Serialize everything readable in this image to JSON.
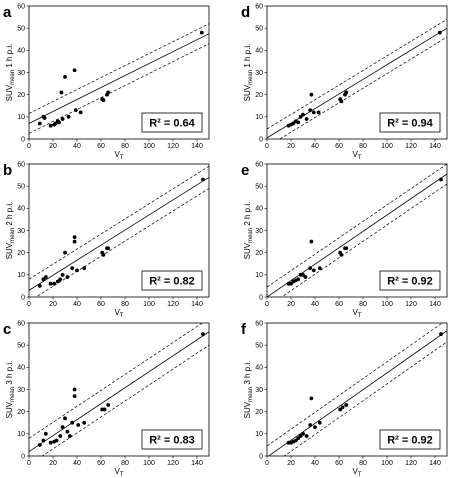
{
  "chart_data": [
    {
      "panel": "a",
      "type": "scatter",
      "r2": "R² = 0.64",
      "xlabel": "V",
      "xlabel_sub": "T",
      "ylabel_pre": "SUV",
      "ylabel_sub": "mean",
      "ylabel_post": " 1 h p.i.",
      "xlim": [
        0,
        150
      ],
      "ylim": [
        0,
        60
      ],
      "xticks": [
        0,
        20,
        40,
        60,
        80,
        100,
        120,
        140
      ],
      "yticks": [
        0,
        10,
        20,
        30,
        40,
        50,
        60
      ],
      "fit": {
        "slope": 0.27,
        "intercept": 7.0,
        "band": 4.5
      },
      "points": [
        [
          9,
          7
        ],
        [
          12,
          10
        ],
        [
          13,
          9.5
        ],
        [
          18,
          6
        ],
        [
          21,
          6.5
        ],
        [
          22,
          7
        ],
        [
          24,
          8
        ],
        [
          25,
          7.5
        ],
        [
          27,
          21
        ],
        [
          28,
          9
        ],
        [
          30,
          28
        ],
        [
          33,
          10
        ],
        [
          38,
          31
        ],
        [
          39,
          13
        ],
        [
          43,
          12
        ],
        [
          61,
          18
        ],
        [
          62,
          17.5
        ],
        [
          65,
          20
        ],
        [
          66,
          21
        ],
        [
          144,
          48
        ]
      ]
    },
    {
      "panel": "b",
      "type": "scatter",
      "r2": "R² = 0.82",
      "xlabel": "V",
      "xlabel_sub": "T",
      "ylabel_pre": "SUV",
      "ylabel_sub": "mean",
      "ylabel_post": " 2 h p.i.",
      "xlim": [
        0,
        150
      ],
      "ylim": [
        0,
        60
      ],
      "xticks": [
        0,
        20,
        40,
        60,
        80,
        100,
        120,
        140
      ],
      "yticks": [
        0,
        10,
        20,
        30,
        40,
        50,
        60
      ],
      "fit": {
        "slope": 0.34,
        "intercept": 3.0,
        "band": 5.0
      },
      "points": [
        [
          9,
          5
        ],
        [
          12,
          8
        ],
        [
          14,
          9
        ],
        [
          18,
          6
        ],
        [
          21,
          6
        ],
        [
          24,
          7
        ],
        [
          26,
          8
        ],
        [
          28,
          10
        ],
        [
          30,
          20
        ],
        [
          32,
          9
        ],
        [
          36,
          13
        ],
        [
          38,
          25
        ],
        [
          38,
          27
        ],
        [
          40,
          12
        ],
        [
          46,
          13
        ],
        [
          61,
          20
        ],
        [
          62,
          19
        ],
        [
          65,
          22
        ],
        [
          66,
          22
        ],
        [
          145,
          53
        ]
      ]
    },
    {
      "panel": "c",
      "type": "scatter",
      "r2": "R² = 0.83",
      "xlabel": "V",
      "xlabel_sub": "T",
      "ylabel_pre": "SUV",
      "ylabel_sub": "mean",
      "ylabel_post": " 3 h p.i.",
      "xlim": [
        0,
        150
      ],
      "ylim": [
        0,
        60
      ],
      "xticks": [
        0,
        20,
        40,
        60,
        80,
        100,
        120,
        140
      ],
      "yticks": [
        0,
        10,
        20,
        30,
        40,
        50,
        60
      ],
      "fit": {
        "slope": 0.36,
        "intercept": 2.0,
        "band": 6.0
      },
      "points": [
        [
          9,
          5
        ],
        [
          12,
          7
        ],
        [
          14,
          10
        ],
        [
          18,
          6
        ],
        [
          21,
          6.5
        ],
        [
          23,
          7
        ],
        [
          26,
          9
        ],
        [
          28,
          13
        ],
        [
          30,
          17
        ],
        [
          32,
          11
        ],
        [
          34,
          9
        ],
        [
          36,
          15
        ],
        [
          38,
          27
        ],
        [
          38,
          30
        ],
        [
          41,
          14
        ],
        [
          46,
          15
        ],
        [
          61,
          21
        ],
        [
          63,
          21
        ],
        [
          66,
          23
        ],
        [
          145,
          55
        ]
      ]
    },
    {
      "panel": "d",
      "type": "scatter",
      "r2": "R² = 0.94",
      "xlabel": "V",
      "xlabel_sub": "T",
      "ylabel_pre": "SUV",
      "ylabel_sub": "mean",
      "ylabel_post": " 1 h p.i.",
      "xlim": [
        0,
        150
      ],
      "ylim": [
        0,
        60
      ],
      "xticks": [
        0,
        20,
        40,
        60,
        80,
        100,
        120,
        140
      ],
      "yticks": [
        0,
        10,
        20,
        30,
        40,
        50,
        60
      ],
      "fit": {
        "slope": 0.33,
        "intercept": 0.5,
        "band": 4.0
      },
      "points": [
        [
          18,
          6
        ],
        [
          20,
          6.5
        ],
        [
          22,
          7
        ],
        [
          24,
          8
        ],
        [
          26,
          7.5
        ],
        [
          28,
          10
        ],
        [
          30,
          11
        ],
        [
          33,
          9
        ],
        [
          36,
          13
        ],
        [
          37,
          20
        ],
        [
          39,
          12
        ],
        [
          43,
          12
        ],
        [
          61,
          18
        ],
        [
          62,
          17
        ],
        [
          65,
          20
        ],
        [
          66,
          21
        ],
        [
          144,
          48
        ]
      ]
    },
    {
      "panel": "e",
      "type": "scatter",
      "r2": "R² = 0.92",
      "xlabel": "V",
      "xlabel_sub": "T",
      "ylabel_pre": "SUV",
      "ylabel_sub": "mean",
      "ylabel_post": " 2 h p.i.",
      "xlim": [
        0,
        150
      ],
      "ylim": [
        0,
        60
      ],
      "xticks": [
        0,
        20,
        40,
        60,
        80,
        100,
        120,
        140
      ],
      "yticks": [
        0,
        10,
        20,
        30,
        40,
        50,
        60
      ],
      "fit": {
        "slope": 0.37,
        "intercept": 0.0,
        "band": 4.5
      },
      "points": [
        [
          18,
          6
        ],
        [
          20,
          6
        ],
        [
          22,
          7
        ],
        [
          24,
          7.5
        ],
        [
          26,
          8
        ],
        [
          28,
          10
        ],
        [
          30,
          10
        ],
        [
          32,
          9
        ],
        [
          36,
          13
        ],
        [
          37,
          25
        ],
        [
          39,
          12
        ],
        [
          44,
          13
        ],
        [
          61,
          20
        ],
        [
          62,
          19
        ],
        [
          65,
          22
        ],
        [
          66,
          22
        ],
        [
          145,
          53
        ]
      ]
    },
    {
      "panel": "f",
      "type": "scatter",
      "r2": "R² = 0.92",
      "xlabel": "V",
      "xlabel_sub": "T",
      "ylabel_pre": "SUV",
      "ylabel_sub": "mean",
      "ylabel_post": " 3 h p.i.",
      "xlim": [
        0,
        150
      ],
      "ylim": [
        0,
        60
      ],
      "xticks": [
        0,
        20,
        40,
        60,
        80,
        100,
        120,
        140
      ],
      "yticks": [
        0,
        10,
        20,
        30,
        40,
        50,
        60
      ],
      "fit": {
        "slope": 0.38,
        "intercept": -0.5,
        "band": 5.0
      },
      "points": [
        [
          18,
          6
        ],
        [
          20,
          6
        ],
        [
          22,
          6.5
        ],
        [
          24,
          7
        ],
        [
          26,
          8
        ],
        [
          28,
          9
        ],
        [
          30,
          10
        ],
        [
          33,
          9
        ],
        [
          36,
          14
        ],
        [
          37,
          26
        ],
        [
          40,
          13
        ],
        [
          44,
          15
        ],
        [
          61,
          21
        ],
        [
          63,
          22
        ],
        [
          66,
          23
        ],
        [
          145,
          55
        ]
      ]
    }
  ]
}
